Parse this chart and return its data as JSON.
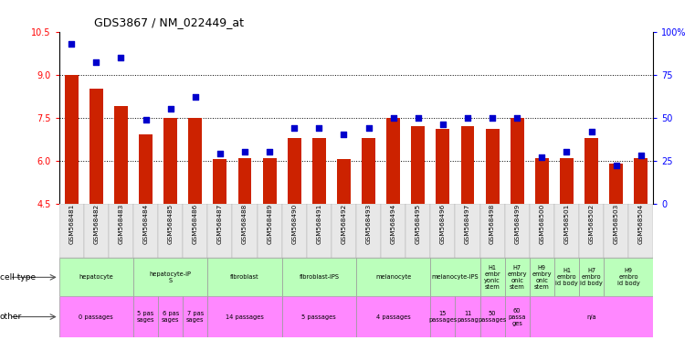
{
  "title": "GDS3867 / NM_022449_at",
  "samples": [
    "GSM568481",
    "GSM568482",
    "GSM568483",
    "GSM568484",
    "GSM568485",
    "GSM568486",
    "GSM568487",
    "GSM568488",
    "GSM568489",
    "GSM568490",
    "GSM568491",
    "GSM568492",
    "GSM568493",
    "GSM568494",
    "GSM568495",
    "GSM568496",
    "GSM568497",
    "GSM568498",
    "GSM568499",
    "GSM568500",
    "GSM568501",
    "GSM568502",
    "GSM568503",
    "GSM568504"
  ],
  "bar_values": [
    9.0,
    8.5,
    7.9,
    6.9,
    7.5,
    7.5,
    6.05,
    6.1,
    6.1,
    6.8,
    6.8,
    6.05,
    6.8,
    7.5,
    7.2,
    7.1,
    7.2,
    7.1,
    7.5,
    6.1,
    6.1,
    6.8,
    5.9,
    6.1
  ],
  "dot_pct": [
    93,
    82,
    85,
    49,
    55,
    62,
    29,
    30,
    30,
    44,
    44,
    40,
    44,
    50,
    50,
    46,
    50,
    50,
    50,
    27,
    30,
    42,
    22,
    28
  ],
  "ylim_left": [
    4.5,
    10.5
  ],
  "ylim_right": [
    0,
    100
  ],
  "yticks_left": [
    4.5,
    6.0,
    7.5,
    9.0,
    10.5
  ],
  "yticks_right": [
    0,
    25,
    50,
    75,
    100
  ],
  "bar_color": "#cc2200",
  "dot_color": "#0000cc",
  "green_color": "#bbffbb",
  "pink_color": "#ff88ff",
  "bg_color": "#dddddd",
  "cell_type_labels": [
    {
      "label": "hepatocyte",
      "start": 0,
      "end": 3
    },
    {
      "label": "hepatocyte-iP\nS",
      "start": 3,
      "end": 6
    },
    {
      "label": "fibroblast",
      "start": 6,
      "end": 9
    },
    {
      "label": "fibroblast-IPS",
      "start": 9,
      "end": 12
    },
    {
      "label": "melanocyte",
      "start": 12,
      "end": 15
    },
    {
      "label": "melanocyte-IPS",
      "start": 15,
      "end": 17
    },
    {
      "label": "H1\nembr\nyonic\nstem",
      "start": 17,
      "end": 18
    },
    {
      "label": "H7\nembry\nonic\nstem",
      "start": 18,
      "end": 19
    },
    {
      "label": "H9\nembry\nonic\nstem",
      "start": 19,
      "end": 20
    },
    {
      "label": "H1\nembro\nid body",
      "start": 20,
      "end": 21
    },
    {
      "label": "H7\nembro\nid body",
      "start": 21,
      "end": 22
    },
    {
      "label": "H9\nembro\nid body",
      "start": 22,
      "end": 24
    }
  ],
  "other_labels": [
    {
      "label": "0 passages",
      "start": 0,
      "end": 3
    },
    {
      "label": "5 pas\nsages",
      "start": 3,
      "end": 4
    },
    {
      "label": "6 pas\nsages",
      "start": 4,
      "end": 5
    },
    {
      "label": "7 pas\nsages",
      "start": 5,
      "end": 6
    },
    {
      "label": "14 passages",
      "start": 6,
      "end": 9
    },
    {
      "label": "5 passages",
      "start": 9,
      "end": 12
    },
    {
      "label": "4 passages",
      "start": 12,
      "end": 15
    },
    {
      "label": "15\npassages",
      "start": 15,
      "end": 16
    },
    {
      "label": "11\npassag",
      "start": 16,
      "end": 17
    },
    {
      "label": "50\npassages",
      "start": 17,
      "end": 18
    },
    {
      "label": "60\npassa\nges",
      "start": 18,
      "end": 19
    },
    {
      "label": "n/a",
      "start": 19,
      "end": 24
    }
  ]
}
